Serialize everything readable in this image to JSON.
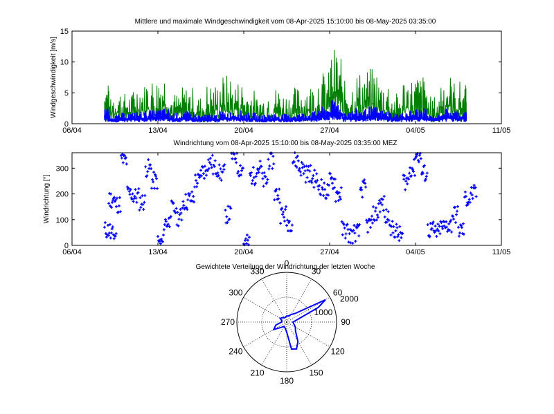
{
  "figure": {
    "background": "#ffffff"
  },
  "chart_data": [
    {
      "type": "line",
      "title": "Mittlere und maximale Windgeschwindigkeit vom 08-Apr-2025 15:10:00 bis 08-May-2025 03:35:00",
      "xlabel": "",
      "ylabel": "Windgeschwindigkeit  [m/s]",
      "x_ticks": [
        "06/04",
        "13/04",
        "20/04",
        "27/04",
        "04/05",
        "11/05"
      ],
      "xlim": [
        "2025-04-06",
        "2025-05-11"
      ],
      "ylim": [
        0,
        15
      ],
      "y_ticks": [
        0,
        5,
        10,
        15
      ],
      "grid": false,
      "colors": {
        "max": "#008000",
        "mean": "#0000ff"
      },
      "series": [
        {
          "key": "max",
          "color": "#008000",
          "x": [
            "2025-04-08",
            "2025-04-09",
            "2025-04-10",
            "2025-04-11",
            "2025-04-12",
            "2025-04-13",
            "2025-04-14",
            "2025-04-15",
            "2025-04-16",
            "2025-04-17",
            "2025-04-18",
            "2025-04-19",
            "2025-04-20",
            "2025-04-21",
            "2025-04-22",
            "2025-04-23",
            "2025-04-24",
            "2025-04-25",
            "2025-04-26",
            "2025-04-27",
            "2025-04-28",
            "2025-04-29",
            "2025-04-30",
            "2025-05-01",
            "2025-05-02",
            "2025-05-03",
            "2025-05-04",
            "2025-05-05",
            "2025-05-06",
            "2025-05-07",
            "2025-05-08"
          ],
          "values": [
            6.5,
            5.5,
            5,
            6.5,
            7.5,
            8.5,
            5,
            6,
            4.5,
            6.5,
            8,
            7,
            5.5,
            4.5,
            6,
            5,
            6,
            6.5,
            8.5,
            12.5,
            7,
            8.5,
            9,
            7,
            5,
            7.5,
            8,
            4.5,
            8,
            7,
            6.5
          ]
        },
        {
          "key": "mean",
          "color": "#0000ff",
          "x": [
            "2025-04-08",
            "2025-04-09",
            "2025-04-10",
            "2025-04-11",
            "2025-04-12",
            "2025-04-13",
            "2025-04-14",
            "2025-04-15",
            "2025-04-16",
            "2025-04-17",
            "2025-04-18",
            "2025-04-19",
            "2025-04-20",
            "2025-04-21",
            "2025-04-22",
            "2025-04-23",
            "2025-04-24",
            "2025-04-25",
            "2025-04-26",
            "2025-04-27",
            "2025-04-28",
            "2025-04-29",
            "2025-04-30",
            "2025-05-01",
            "2025-05-02",
            "2025-05-03",
            "2025-05-04",
            "2025-05-05",
            "2025-05-06",
            "2025-05-07",
            "2025-05-08"
          ],
          "values": [
            2.5,
            1.5,
            1.8,
            2,
            2.2,
            2.5,
            1.8,
            2,
            1.5,
            1.6,
            2,
            2.2,
            1.8,
            1.5,
            1.7,
            1.6,
            1.8,
            2,
            2.8,
            3.8,
            2.2,
            2.5,
            2.8,
            2.2,
            1.8,
            2.2,
            2.5,
            1.5,
            2.5,
            2.2,
            2
          ]
        }
      ]
    },
    {
      "type": "scatter",
      "title": "Windrichtung vom 08-Apr-2025 15:10:00 bis 08-May-2025 03:35:00 MEZ",
      "xlabel": "",
      "ylabel": "Windrichtung  [°]",
      "x_ticks": [
        "06/04",
        "13/04",
        "20/04",
        "27/04",
        "04/05",
        "11/05"
      ],
      "xlim": [
        "2025-04-06",
        "2025-05-11"
      ],
      "ylim": [
        0,
        360
      ],
      "y_ticks": [
        0,
        100,
        200,
        300
      ],
      "grid": false,
      "marker": "+",
      "color": "#0000ff",
      "series": [
        {
          "key": "direction",
          "color": "#0000ff",
          "x": [
            "2025-04-08",
            "2025-04-08",
            "2025-04-09",
            "2025-04-09",
            "2025-04-10",
            "2025-04-10",
            "2025-04-11",
            "2025-04-11",
            "2025-04-12",
            "2025-04-12",
            "2025-04-13",
            "2025-04-13",
            "2025-04-14",
            "2025-04-14",
            "2025-04-15",
            "2025-04-15",
            "2025-04-16",
            "2025-04-16",
            "2025-04-17",
            "2025-04-17",
            "2025-04-18",
            "2025-04-18",
            "2025-04-19",
            "2025-04-19",
            "2025-04-20",
            "2025-04-20",
            "2025-04-21",
            "2025-04-21",
            "2025-04-22",
            "2025-04-22",
            "2025-04-23",
            "2025-04-23",
            "2025-04-24",
            "2025-04-24",
            "2025-04-25",
            "2025-04-25",
            "2025-04-26",
            "2025-04-26",
            "2025-04-27",
            "2025-04-27",
            "2025-04-28",
            "2025-04-28",
            "2025-04-29",
            "2025-04-29",
            "2025-04-30",
            "2025-04-30",
            "2025-05-01",
            "2025-05-01",
            "2025-05-02",
            "2025-05-02",
            "2025-05-03",
            "2025-05-03",
            "2025-05-04",
            "2025-05-04",
            "2025-05-05",
            "2025-05-05",
            "2025-05-06",
            "2025-05-06",
            "2025-05-07",
            "2025-05-07",
            "2025-05-08",
            "2025-05-08"
          ],
          "values": [
            60,
            40,
            180,
            160,
            330,
            200,
            190,
            170,
            300,
            250,
            10,
            90,
            140,
            110,
            170,
            180,
            250,
            290,
            320,
            300,
            280,
            120,
            350,
            300,
            10,
            270,
            300,
            250,
            330,
            200,
            120,
            90,
            330,
            300,
            280,
            260,
            230,
            210,
            250,
            200,
            60,
            40,
            50,
            220,
            80,
            120,
            160,
            110,
            60,
            40,
            250,
            300,
            350,
            280,
            60,
            50,
            70,
            80,
            120,
            60,
            180,
            200
          ]
        }
      ]
    },
    {
      "type": "polar",
      "title": "Gewichtete Verteilung der Windrichtung der letzten Woche",
      "angle_ticks": [
        "0",
        "30",
        "60",
        "90",
        "120",
        "150",
        "180",
        "210",
        "240",
        "270",
        "300",
        "330"
      ],
      "radius_ticks": [
        "1000",
        "2000"
      ],
      "rlim": [
        0,
        2000
      ],
      "zero_location": "top",
      "direction": "clockwise",
      "color": "#0000ff",
      "series": [
        {
          "key": "weighted-distribution",
          "color": "#0000ff",
          "angles": [
            0,
            15,
            30,
            45,
            60,
            65,
            75,
            90,
            105,
            120,
            135,
            150,
            160,
            170,
            180,
            195,
            210,
            225,
            240,
            255,
            270,
            285,
            300,
            315,
            330,
            345
          ],
          "values": [
            250,
            250,
            350,
            500,
            1800,
            1400,
            500,
            250,
            300,
            400,
            500,
            900,
            1150,
            1100,
            400,
            250,
            200,
            300,
            600,
            450,
            200,
            200,
            300,
            250,
            200,
            200
          ]
        }
      ]
    }
  ]
}
